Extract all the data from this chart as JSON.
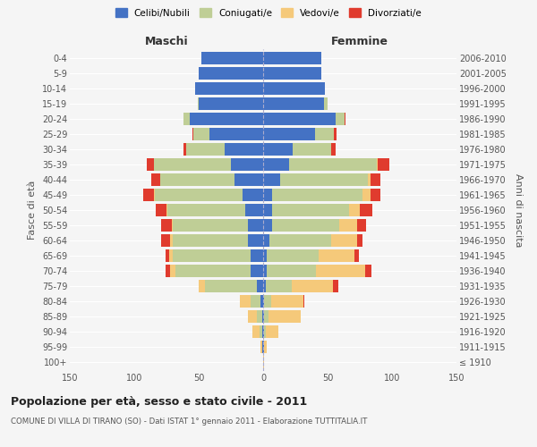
{
  "age_groups": [
    "100+",
    "95-99",
    "90-94",
    "85-89",
    "80-84",
    "75-79",
    "70-74",
    "65-69",
    "60-64",
    "55-59",
    "50-54",
    "45-49",
    "40-44",
    "35-39",
    "30-34",
    "25-29",
    "20-24",
    "15-19",
    "10-14",
    "5-9",
    "0-4"
  ],
  "birth_years": [
    "≤ 1910",
    "1911-1915",
    "1916-1920",
    "1921-1925",
    "1926-1930",
    "1931-1935",
    "1936-1940",
    "1941-1945",
    "1946-1950",
    "1951-1955",
    "1956-1960",
    "1961-1965",
    "1966-1970",
    "1971-1975",
    "1976-1980",
    "1981-1985",
    "1986-1990",
    "1991-1995",
    "1996-2000",
    "2001-2005",
    "2006-2010"
  ],
  "maschi": {
    "celibi": [
      0,
      1,
      1,
      1,
      2,
      5,
      10,
      10,
      12,
      12,
      14,
      16,
      22,
      25,
      30,
      42,
      57,
      50,
      53,
      50,
      48
    ],
    "coniugati": [
      0,
      0,
      2,
      4,
      8,
      40,
      58,
      60,
      58,
      58,
      60,
      68,
      58,
      60,
      30,
      12,
      5,
      1,
      0,
      0,
      0
    ],
    "vedovi": [
      0,
      1,
      5,
      7,
      8,
      5,
      4,
      3,
      2,
      1,
      1,
      1,
      0,
      0,
      0,
      0,
      0,
      0,
      0,
      0,
      0
    ],
    "divorziati": [
      0,
      0,
      0,
      0,
      0,
      0,
      4,
      3,
      7,
      8,
      8,
      8,
      7,
      5,
      2,
      1,
      0,
      0,
      0,
      0,
      0
    ]
  },
  "femmine": {
    "nubili": [
      0,
      1,
      1,
      1,
      1,
      2,
      3,
      3,
      5,
      7,
      7,
      7,
      13,
      20,
      23,
      40,
      56,
      47,
      48,
      45,
      45
    ],
    "coniugate": [
      0,
      0,
      1,
      3,
      5,
      20,
      38,
      40,
      48,
      52,
      60,
      70,
      68,
      68,
      30,
      15,
      7,
      3,
      0,
      0,
      0
    ],
    "vedove": [
      1,
      2,
      10,
      25,
      25,
      32,
      38,
      28,
      20,
      14,
      8,
      6,
      2,
      1,
      0,
      0,
      0,
      0,
      0,
      0,
      0
    ],
    "divorziate": [
      0,
      0,
      0,
      0,
      1,
      4,
      5,
      3,
      4,
      7,
      10,
      8,
      8,
      9,
      3,
      2,
      1,
      0,
      0,
      0,
      0
    ]
  },
  "colors": {
    "celibi_nubili": "#4472C4",
    "coniugati": "#BFCE96",
    "vedovi": "#F5C97A",
    "divorziati": "#E03B2E"
  },
  "xlim": 150,
  "title": "Popolazione per età, sesso e stato civile - 2011",
  "subtitle": "COMUNE DI VILLA DI TIRANO (SO) - Dati ISTAT 1° gennaio 2011 - Elaborazione TUTTITALIA.IT",
  "ylabel_left": "Fasce di età",
  "ylabel_right": "Anni di nascita",
  "xlabel_left": "Maschi",
  "xlabel_right": "Femmine",
  "bg_color": "#f5f5f5",
  "legend_labels": [
    "Celibi/Nubili",
    "Coniugati/e",
    "Vedovi/e",
    "Divorziati/e"
  ]
}
